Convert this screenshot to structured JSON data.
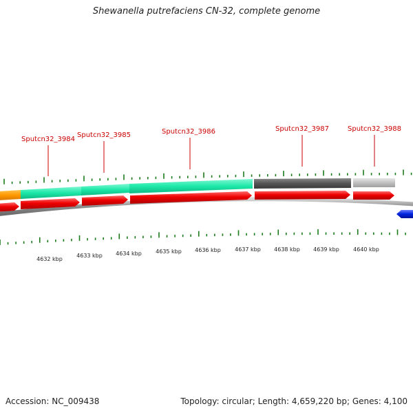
{
  "title": "Shewanella putrefaciens CN-32, complete genome",
  "footer": {
    "accession": "Accession: NC_009438",
    "summary": "Topology: circular; Length: 4,659,220 bp; Genes: 4,100"
  },
  "gene_labels": [
    "Sputcn32_3984",
    "Sputcn32_3985",
    "Sputcn32_3986",
    "Sputcn32_3987",
    "Sputcn32_3988"
  ],
  "scale_labels": [
    "4632 kbp",
    "4633 kbp",
    "4634 kbp",
    "4635 kbp",
    "4636 kbp",
    "4637 kbp",
    "4638 kbp",
    "4639 kbp",
    "4640 kbp"
  ],
  "colors": {
    "label": "#cc0000",
    "tick": "#1a7a1a",
    "cog_teal": "#1de9a8",
    "cog_dark": "#555555",
    "cog_light": "#c0c0c0",
    "cog_orange": "#ff9900",
    "gene_red": "#ee0000",
    "gene_blue": "#0022dd",
    "backbone": "#888888"
  }
}
